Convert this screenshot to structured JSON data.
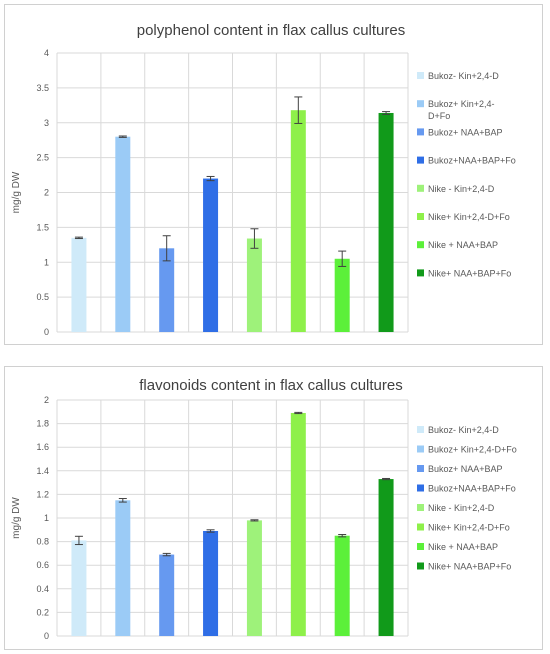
{
  "colors": {
    "bukoz_kin": "#cfeaf9",
    "bukoz_kin_fo": "#9bcbf6",
    "bukoz_naa": "#6699f0",
    "bukoz_naa_fo": "#2f6ee6",
    "nike_kin": "#9ef27a",
    "nike_kin_fo": "#8ef04a",
    "nike_naa": "#5cf03a",
    "nike_naa_fo": "#119a1a",
    "gridline": "#d9d9d9",
    "text": "#595959"
  },
  "chart_data": [
    {
      "type": "bar",
      "title": "polyphenol content in flax callus cultures",
      "xlabel": "",
      "ylabel": "mg/g DW",
      "ylim": [
        0,
        4
      ],
      "yticks": [
        0,
        0.5,
        1,
        1.5,
        2,
        2.5,
        3,
        3.5,
        4
      ],
      "ytick_labels": [
        "0",
        "0.5",
        "1",
        "1.5",
        "2",
        "2.5",
        "3",
        "3.5",
        "4"
      ],
      "grid": true,
      "legend_position": "right",
      "legend_entries": [
        [
          "Bukoz- Kin+2,4-D"
        ],
        [
          "Bukoz+ Kin+2,4-",
          "D+Fo"
        ],
        [
          "Bukoz+ NAA+BAP"
        ],
        [
          "Bukoz+NAA+BAP+Fo"
        ],
        [
          "Nike - Kin+2,4-D"
        ],
        [
          "Nike+ Kin+2,4-D+Fo"
        ],
        [
          "Nike + NAA+BAP"
        ],
        [
          "Nike+ NAA+BAP+Fo"
        ]
      ],
      "values": [
        1.35,
        2.8,
        1.2,
        2.2,
        1.34,
        3.18,
        1.05,
        3.14
      ],
      "errors": [
        0.01,
        0.01,
        0.18,
        0.03,
        0.14,
        0.19,
        0.11,
        0.02
      ]
    },
    {
      "type": "bar",
      "title": "flavonoids content in flax callus cultures",
      "xlabel": "",
      "ylabel": "mg/g DW",
      "ylim": [
        0,
        2
      ],
      "yticks": [
        0,
        0.2,
        0.4,
        0.6,
        0.8,
        1,
        1.2,
        1.4,
        1.6,
        1.8,
        2
      ],
      "ytick_labels": [
        "0",
        "0.2",
        "0.4",
        "0.6",
        "0.8",
        "1",
        "1.2",
        "1.4",
        "1.6",
        "1.8",
        "2"
      ],
      "grid": true,
      "legend_position": "right",
      "legend_entries": [
        [
          "Bukoz- Kin+2,4-D"
        ],
        [
          "Bukoz+ Kin+2,4-D+Fo"
        ],
        [
          "Bukoz+ NAA+BAP"
        ],
        [
          "Bukoz+NAA+BAP+Fo"
        ],
        [
          "Nike - Kin+2,4-D"
        ],
        [
          "Nike+ Kin+2,4-D+Fo"
        ],
        [
          "Nike + NAA+BAP"
        ],
        [
          "Nike+ NAA+BAP+Fo"
        ]
      ],
      "values": [
        0.81,
        1.15,
        0.69,
        0.89,
        0.98,
        1.89,
        0.85,
        1.33
      ],
      "errors": [
        0.035,
        0.015,
        0.01,
        0.01,
        0.005,
        0.005,
        0.01,
        0.005
      ]
    }
  ],
  "series_color_keys": [
    "bukoz_kin",
    "bukoz_kin_fo",
    "bukoz_naa",
    "bukoz_naa_fo",
    "nike_kin",
    "nike_kin_fo",
    "nike_naa",
    "nike_naa_fo"
  ]
}
